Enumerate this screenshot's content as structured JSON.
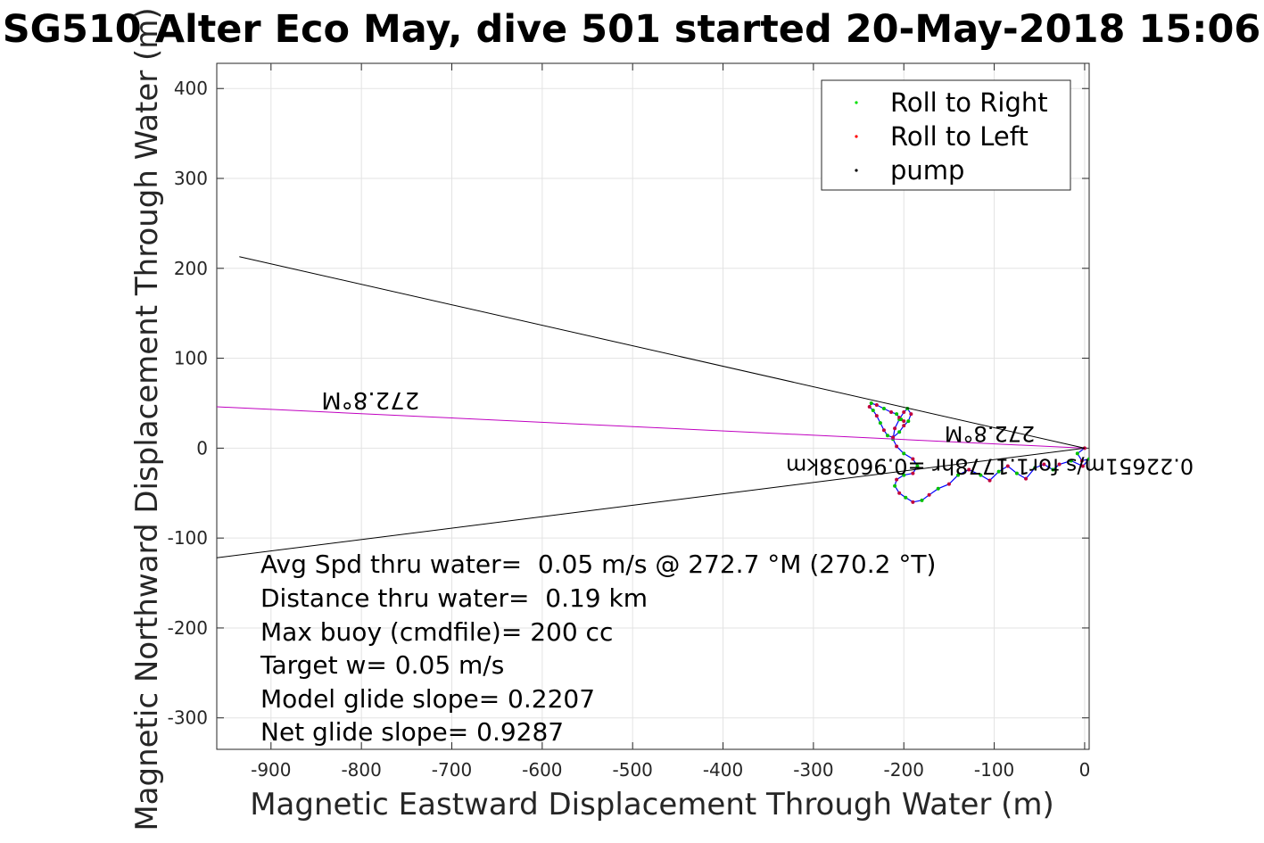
{
  "chart_data": {
    "type": "line",
    "title": "SG510 Alter Eco May, dive 501 started 20-May-2018 15:06",
    "xlabel": "Magnetic Eastward Displacement Through Water (m)",
    "ylabel": "Magnetic Northward Displacement Through Water (m)",
    "xlim": [
      -960,
      5
    ],
    "ylim": [
      -335,
      428
    ],
    "x_ticks": [
      -900,
      -800,
      -700,
      -600,
      -500,
      -400,
      -300,
      -200,
      -100,
      0
    ],
    "y_ticks": [
      -300,
      -200,
      -100,
      0,
      100,
      200,
      300,
      400
    ],
    "grid": true,
    "legend": {
      "position": "top-right",
      "entries": [
        {
          "label": "Roll to Right",
          "color": "#00e000"
        },
        {
          "label": "Roll to Left",
          "color": "#ff0000"
        },
        {
          "label": "pump",
          "color": "#000000"
        }
      ]
    },
    "series": [
      {
        "role": "track",
        "color": "#0000ff",
        "x": [
          0,
          -8,
          -3,
          5,
          -2,
          -15,
          -28,
          -35,
          -45,
          -55,
          -65,
          -75,
          -85,
          -95,
          -105,
          -115,
          -128,
          -140,
          -150,
          -162,
          -172,
          -180,
          -190,
          -198,
          -205,
          -210,
          -208,
          -200,
          -190,
          -185,
          -190,
          -200,
          -208,
          -212,
          -210,
          -205,
          -200,
          -196,
          -192,
          -195,
          -200,
          -205,
          -212,
          -218,
          -222,
          -226,
          -230,
          -234,
          -238,
          -236,
          -230,
          -222,
          -214,
          -208,
          -205,
          -203,
          -200
        ],
        "y": [
          0,
          -6,
          -14,
          -12,
          -20,
          -14,
          -18,
          -24,
          -18,
          -22,
          -34,
          -28,
          -20,
          -26,
          -36,
          -30,
          -24,
          -30,
          -40,
          -45,
          -52,
          -58,
          -60,
          -55,
          -50,
          -42,
          -35,
          -30,
          -28,
          -20,
          -12,
          -6,
          2,
          10,
          22,
          32,
          40,
          44,
          38,
          30,
          25,
          18,
          12,
          14,
          20,
          28,
          36,
          42,
          46,
          50,
          48,
          44,
          40,
          38,
          34,
          32,
          30
        ]
      },
      {
        "role": "heading-line",
        "color": "#c000c0",
        "x": [
          0,
          -960
        ],
        "y": [
          0,
          46
        ]
      },
      {
        "role": "bound",
        "color": "#000000",
        "x": [
          0,
          -935
        ],
        "y": [
          0,
          213
        ]
      },
      {
        "role": "bound",
        "color": "#000000",
        "x": [
          0,
          -960
        ],
        "y": [
          0,
          -122
        ]
      }
    ],
    "annotations": [
      {
        "text": "272.8°M",
        "x": -790,
        "y": 62,
        "rotation": 180,
        "size": 26
      },
      {
        "text": "272.8°M",
        "x": -105,
        "y": 24,
        "rotation": 180,
        "size": 24
      },
      {
        "text": "0.22651m/s for1.1778hr =0.96038km",
        "x": -105,
        "y": -12,
        "rotation": 180,
        "size": 24
      }
    ],
    "stats": [
      "Avg Spd thru water=  0.05 m/s @ 272.7 °M (270.2 °T)",
      "Distance thru water=  0.19 km",
      "Max buoy (cmdfile)= 200 cc",
      "Target w= 0.05 m/s",
      "Model glide slope= 0.2207",
      "Net glide slope= 0.9287"
    ]
  }
}
